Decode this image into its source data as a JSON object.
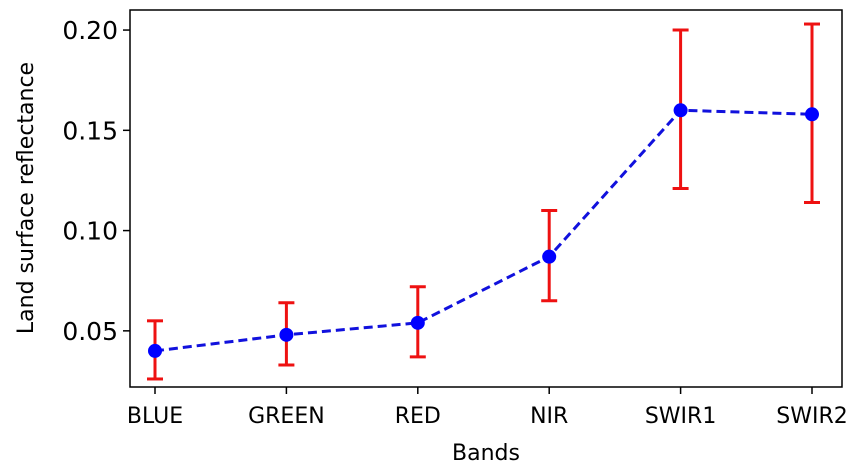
{
  "chart_data": {
    "type": "line",
    "xlabel": "Bands",
    "ylabel": "Land surface reflectance",
    "categories": [
      "BLUE",
      "GREEN",
      "RED",
      "NIR",
      "SWIR1",
      "SWIR2"
    ],
    "series": [
      {
        "values": [
          0.04,
          0.048,
          0.054,
          0.087,
          0.16,
          0.158
        ],
        "error_low": [
          0.026,
          0.033,
          0.037,
          0.065,
          0.121,
          0.114
        ],
        "error_high": [
          0.055,
          0.064,
          0.072,
          0.11,
          0.2,
          0.203
        ],
        "line_color": "#1111dd",
        "marker_color": "#0000ff",
        "error_color": "#ee1111",
        "line_style": "dashed"
      }
    ],
    "ylim": [
      0.022,
      0.21
    ],
    "yticks": [
      "0.05",
      "0.10",
      "0.15",
      "0.20"
    ],
    "grid": false,
    "legend": "none"
  }
}
